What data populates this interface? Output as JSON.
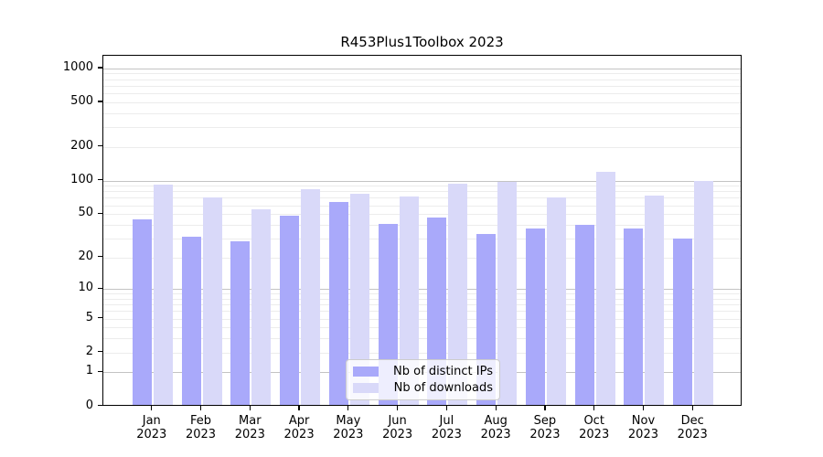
{
  "chart_data": {
    "type": "bar",
    "title": "R453Plus1Toolbox 2023",
    "months": [
      "Jan",
      "Feb",
      "Mar",
      "Apr",
      "May",
      "Jun",
      "Jul",
      "Aug",
      "Sep",
      "Oct",
      "Nov",
      "Dec"
    ],
    "year": "2023",
    "series": [
      {
        "name": "Nb of distinct IPs",
        "color": "#a9a9fa",
        "values": [
          45,
          31,
          28,
          48,
          64,
          41,
          46,
          33,
          37,
          40,
          37,
          30
        ]
      },
      {
        "name": "Nb of downloads",
        "color": "#d9d9f9",
        "values": [
          92,
          71,
          55,
          84,
          76,
          72,
          93,
          98,
          70,
          119,
          73,
          100
        ]
      }
    ],
    "y_ticks": [
      0,
      1,
      2,
      5,
      10,
      20,
      50,
      100,
      200,
      500,
      1000
    ],
    "y_scale": "log1p",
    "ylim": [
      0,
      1250
    ],
    "grid": true,
    "legend_position": "lower center",
    "colors": {
      "background": "#ffffff",
      "axis": "#000000",
      "grid_major": "#c3c3c3",
      "grid_minor": "#ececec",
      "text": "#000000"
    }
  }
}
